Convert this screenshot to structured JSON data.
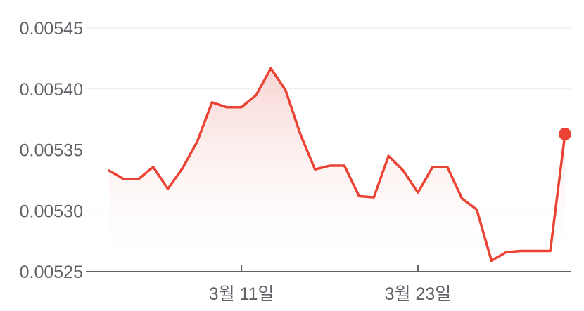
{
  "chart_data": {
    "type": "area",
    "title": "",
    "xlabel": "",
    "ylabel": "",
    "grid": true,
    "ylim": [
      0.00525,
      0.00545
    ],
    "y_ticks": [
      "0.00545",
      "0.00540",
      "0.00535",
      "0.00530",
      "0.00525"
    ],
    "x_ticks": [
      {
        "label": "3월 11일",
        "index": 9
      },
      {
        "label": "3월 23일",
        "index": 21
      }
    ],
    "series": [
      {
        "values": [
          0.005333,
          0.005326,
          0.005326,
          0.005336,
          0.005318,
          0.005335,
          0.005357,
          0.005389,
          0.005385,
          0.005385,
          0.005395,
          0.005417,
          0.005399,
          0.005363,
          0.005334,
          0.005337,
          0.005337,
          0.005312,
          0.005311,
          0.005345,
          0.005333,
          0.005315,
          0.005336,
          0.005336,
          0.00531,
          0.005301,
          0.005259,
          0.005266,
          0.005267,
          0.005267,
          0.005267,
          0.005363
        ]
      }
    ],
    "colors": {
      "line": "#ea4335",
      "fill_top": "#f4c7c3",
      "grid": "#e8eaed",
      "axis": "#5f6368",
      "text": "#5f6368"
    }
  }
}
